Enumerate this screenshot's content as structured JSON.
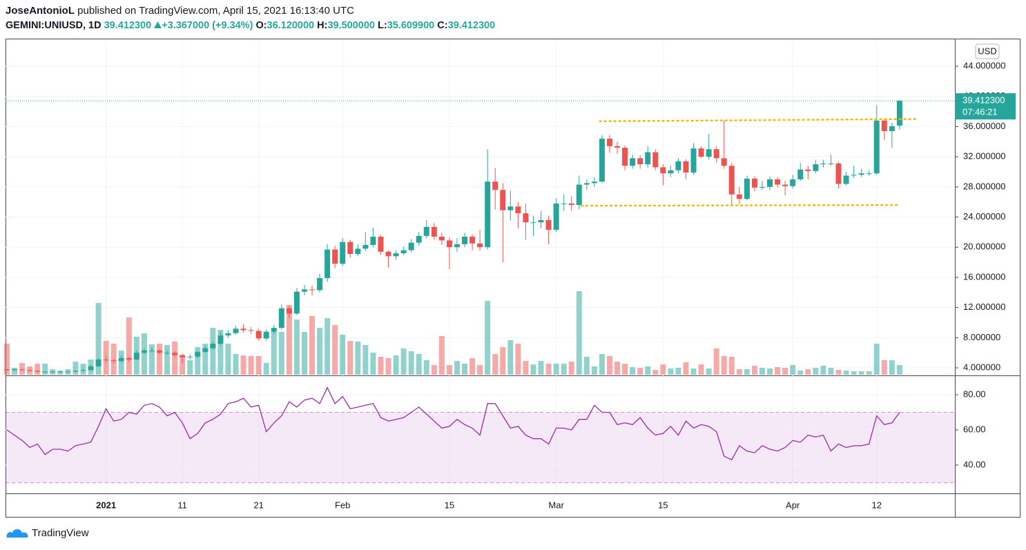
{
  "header": {
    "author": "JoseAntonioL",
    "published": "published on TradingView.com, April 15, 2021 16:13:40 UTC",
    "symbol": "GEMINI:UNIUSD, 1D",
    "last": "39.412300",
    "change": "+3.367000 (+9.34%)",
    "o_label": "O:",
    "o": "36.120000",
    "h_label": "H:",
    "h": "39.500000",
    "l_label": "L:",
    "l": "35.609900",
    "c_label": "C:",
    "c": "39.412300"
  },
  "chart_data": {
    "type": "candlestick",
    "currency": "USD",
    "up_color": "#26a69a",
    "down_color": "#ef5350",
    "open": [
      3.8,
      3.7,
      3.8,
      3.7,
      3.6,
      3.5,
      3.5,
      3.5,
      3.5,
      3.5,
      3.6,
      3.7,
      4.2,
      5.1,
      5.0,
      4.9,
      5.3,
      5.1,
      6.0,
      6.3,
      6.3,
      6.0,
      6.0,
      5.7,
      5.4,
      5.5,
      6.1,
      6.6,
      7.2,
      8.3,
      8.6,
      9.2,
      9.0,
      8.9,
      7.9,
      8.8,
      9.3,
      11.9,
      11.2,
      14.1,
      14.4,
      14.3,
      15.9,
      19.7,
      17.8,
      20.7,
      19.1,
      19.8,
      20.3,
      21.4,
      19.4,
      18.8,
      19.2,
      19.6,
      20.6,
      21.5,
      22.7,
      21.4,
      20.9,
      20.0,
      20.4,
      21.4,
      20.5,
      20.0,
      28.7,
      27.6,
      24.9,
      25.4,
      24.5,
      23.3,
      23.3,
      23.6,
      22.3,
      25.8,
      25.8,
      25.6,
      28.3,
      28.5,
      28.7,
      34.4,
      33.4,
      33.2,
      30.8,
      31.8,
      31.0,
      32.6,
      30.6,
      29.8,
      30.2,
      31.4,
      29.9,
      33.1,
      32.0,
      33.0,
      31.8,
      30.8,
      27.0,
      26.4,
      29.1,
      27.9,
      28.0,
      29.0,
      28.3,
      28.1,
      29.0,
      30.3,
      30.1,
      31.0,
      31.1,
      31.1,
      28.4,
      29.5,
      29.6,
      29.8,
      29.8,
      36.8,
      35.4,
      36.12
    ],
    "high": [
      3.9,
      3.9,
      3.9,
      3.8,
      3.7,
      3.6,
      3.6,
      3.6,
      3.6,
      3.7,
      3.8,
      4.4,
      5.3,
      5.6,
      5.2,
      5.6,
      5.5,
      6.3,
      6.6,
      6.7,
      6.5,
      6.3,
      6.2,
      5.9,
      5.8,
      6.3,
      6.9,
      7.5,
      8.8,
      9.0,
      9.6,
      9.8,
      9.4,
      9.2,
      9.1,
      9.7,
      12.4,
      12.2,
      14.6,
      15.0,
      14.9,
      16.5,
      20.4,
      20.2,
      21.2,
      21.0,
      20.4,
      22.0,
      22.6,
      21.6,
      19.6,
      19.6,
      20.1,
      21.1,
      22.0,
      23.6,
      23.2,
      21.9,
      21.3,
      21.2,
      21.9,
      21.7,
      22.3,
      33.0,
      30.5,
      28.5,
      27.5,
      26.0,
      25.8,
      24.2,
      24.8,
      24.2,
      26.5,
      27.0,
      26.8,
      29.5,
      29.0,
      29.3,
      34.9,
      34.9,
      34.0,
      33.5,
      32.3,
      32.2,
      33.4,
      33.0,
      31.0,
      30.8,
      31.8,
      31.7,
      33.8,
      33.4,
      35.0,
      33.4,
      36.8,
      31.2,
      28.0,
      29.5,
      29.4,
      28.8,
      29.4,
      29.3,
      28.8,
      29.6,
      31.2,
      30.8,
      31.6,
      31.6,
      32.3,
      31.3,
      30.0,
      30.8,
      30.4,
      30.2,
      38.8,
      37.0,
      36.5,
      39.5
    ],
    "low": [
      3.6,
      3.6,
      3.6,
      3.5,
      3.4,
      3.4,
      3.4,
      3.4,
      3.4,
      3.4,
      3.5,
      3.6,
      4.1,
      4.7,
      4.6,
      4.7,
      4.8,
      5.0,
      5.8,
      6.0,
      5.8,
      5.7,
      5.4,
      4.6,
      5.1,
      5.3,
      6.0,
      6.4,
      7.0,
      8.0,
      8.4,
      8.7,
      8.5,
      7.6,
      7.6,
      8.5,
      9.1,
      10.6,
      11.0,
      13.6,
      13.6,
      14.0,
      15.4,
      17.2,
      17.5,
      18.6,
      18.8,
      19.5,
      20.0,
      19.0,
      17.3,
      18.3,
      19.0,
      19.3,
      20.2,
      21.2,
      21.0,
      20.3,
      17.1,
      19.4,
      20.0,
      19.6,
      19.5,
      19.7,
      25.0,
      18.0,
      23.5,
      22.5,
      21.0,
      21.5,
      22.5,
      20.4,
      22.0,
      24.8,
      24.8,
      25.0,
      27.6,
      28.0,
      28.5,
      32.5,
      32.4,
      30.2,
      30.4,
      30.4,
      30.6,
      30.2,
      28.2,
      29.3,
      29.8,
      29.0,
      29.6,
      31.8,
      31.6,
      31.2,
      30.4,
      25.6,
      25.7,
      26.2,
      27.4,
      27.6,
      27.6,
      27.9,
      26.9,
      27.8,
      28.8,
      29.0,
      29.8,
      30.6,
      30.8,
      27.8,
      28.2,
      29.2,
      29.3,
      29.5,
      29.6,
      34.2,
      33.2,
      35.61
    ],
    "close": [
      3.7,
      3.8,
      3.7,
      3.6,
      3.5,
      3.5,
      3.5,
      3.5,
      3.5,
      3.6,
      3.7,
      4.2,
      5.1,
      5.0,
      4.9,
      5.3,
      5.1,
      6.0,
      6.3,
      6.3,
      6.0,
      6.0,
      5.7,
      5.4,
      5.5,
      6.1,
      6.6,
      7.2,
      8.3,
      8.6,
      9.2,
      9.0,
      8.9,
      7.9,
      8.8,
      9.3,
      11.9,
      11.2,
      14.1,
      14.4,
      14.3,
      15.9,
      19.7,
      17.8,
      20.7,
      19.1,
      19.8,
      20.3,
      21.4,
      19.4,
      18.8,
      19.2,
      19.6,
      20.6,
      21.5,
      22.7,
      21.4,
      20.9,
      20.0,
      20.4,
      21.4,
      20.5,
      20.0,
      28.7,
      27.6,
      24.9,
      25.4,
      24.5,
      23.3,
      23.3,
      23.6,
      22.3,
      25.8,
      25.8,
      25.6,
      28.3,
      28.5,
      28.7,
      34.4,
      33.4,
      33.2,
      30.8,
      31.8,
      31.0,
      32.6,
      30.6,
      29.8,
      30.2,
      31.4,
      29.9,
      33.1,
      32.0,
      33.0,
      31.8,
      30.8,
      27.0,
      26.4,
      29.1,
      27.9,
      28.0,
      29.0,
      28.3,
      28.1,
      29.0,
      30.3,
      30.1,
      31.0,
      31.1,
      31.1,
      28.4,
      29.5,
      29.6,
      29.8,
      29.8,
      36.8,
      35.4,
      36.05,
      39.4123
    ],
    "volume": [
      45,
      10,
      17,
      12,
      16,
      16,
      8,
      6,
      8,
      19,
      16,
      22,
      104,
      49,
      45,
      35,
      83,
      55,
      60,
      44,
      45,
      43,
      48,
      27,
      21,
      40,
      45,
      68,
      65,
      45,
      30,
      28,
      27,
      27,
      17,
      63,
      62,
      101,
      80,
      62,
      85,
      68,
      82,
      72,
      58,
      49,
      48,
      43,
      32,
      26,
      24,
      28,
      38,
      34,
      30,
      21,
      14,
      56,
      14,
      20,
      16,
      24,
      14,
      107,
      30,
      40,
      50,
      45,
      20,
      15,
      20,
      16,
      16,
      16,
      19,
      121,
      26,
      12,
      30,
      27,
      19,
      16,
      11,
      10,
      12,
      7,
      15,
      9,
      10,
      18,
      9,
      15,
      9,
      38,
      27,
      26,
      8,
      8,
      13,
      10,
      9,
      11,
      10,
      14,
      6,
      8,
      10,
      13,
      10,
      7,
      6,
      5,
      5,
      5,
      45,
      21,
      21,
      14
    ],
    "xlim": [
      -0.18,
      124.25
    ],
    "xticks": [
      {
        "value": 13,
        "label": "2021"
      },
      {
        "value": 23,
        "label": "11"
      },
      {
        "value": 33,
        "label": "21"
      },
      {
        "value": 44,
        "label": "Feb"
      },
      {
        "value": 58,
        "label": "15"
      },
      {
        "value": 72,
        "label": "Mar"
      },
      {
        "value": 86,
        "label": "15"
      },
      {
        "value": 103,
        "label": "Apr"
      },
      {
        "value": 114,
        "label": "12"
      }
    ],
    "ylim": [
      3.09,
      47.57
    ],
    "yticks": [
      {
        "value": 4,
        "label": "4.000000"
      },
      {
        "value": 8,
        "label": "8.000000"
      },
      {
        "value": 12,
        "label": "12.000000"
      },
      {
        "value": 16,
        "label": "16.000000"
      },
      {
        "value": 20,
        "label": "20.000000"
      },
      {
        "value": 24,
        "label": "24.000000"
      },
      {
        "value": 28,
        "label": "28.000000"
      },
      {
        "value": 32,
        "label": "32.000000"
      },
      {
        "value": 36,
        "label": "36.000000"
      },
      {
        "value": 40,
        "label": "40.000000"
      },
      {
        "value": 44,
        "label": "44.000000"
      }
    ],
    "grid": true,
    "last_price_label": "39.412300",
    "countdown": "07:46:21",
    "trend_color": "#f7b500",
    "trend_lines": [
      {
        "x": [
          77.7,
          119.4
        ],
        "y": [
          36.7,
          37.0
        ]
      },
      {
        "x": [
          75.3,
          117.0
        ],
        "y": [
          25.5,
          25.6
        ]
      }
    ],
    "rsi": {
      "color": "#9c27b0",
      "band": [
        30,
        70
      ],
      "ylim": [
        23.9,
        90.6
      ],
      "yticks": [
        {
          "value": 40,
          "label": "40.00"
        },
        {
          "value": 60,
          "label": "60.00"
        },
        {
          "value": 80,
          "label": "80.00"
        }
      ],
      "values": [
        60,
        57,
        54,
        50,
        52,
        46,
        49,
        49,
        48,
        51,
        52,
        53,
        62,
        72,
        65,
        66,
        70,
        69,
        74,
        75,
        73,
        68,
        70,
        64,
        55,
        58,
        64,
        66,
        69,
        75,
        76,
        78,
        73,
        74,
        59,
        64,
        68,
        76,
        73,
        77,
        78,
        75,
        84,
        75,
        79,
        72,
        73,
        74,
        75,
        67,
        65,
        66,
        67,
        70,
        73,
        69,
        65,
        61,
        62,
        66,
        63,
        61,
        57,
        75,
        75,
        68,
        61,
        62,
        57,
        55,
        55,
        52,
        61,
        61,
        60,
        66,
        66,
        74,
        70,
        70,
        63,
        64,
        63,
        67,
        61,
        57,
        58,
        62,
        57,
        65,
        61,
        63,
        62,
        59,
        45,
        43,
        51,
        48,
        47,
        51,
        49,
        48,
        50,
        54,
        53,
        57,
        56,
        57,
        48,
        52,
        50,
        51,
        51,
        52,
        68,
        63,
        64,
        70
      ]
    }
  },
  "footer": {
    "brand": "TradingView"
  }
}
